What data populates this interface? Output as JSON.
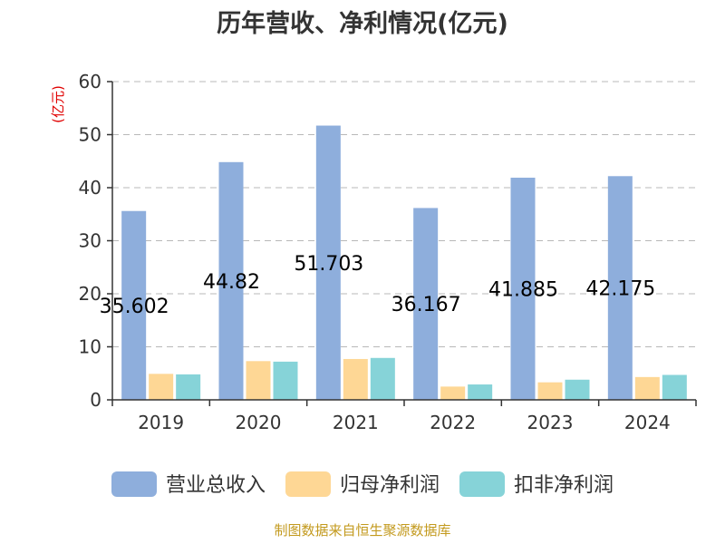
{
  "chart_data": {
    "type": "bar",
    "title": "历年营收、净利情况(亿元)",
    "ylabel": "(亿元)",
    "xlabel": "",
    "categories": [
      "2019",
      "2020",
      "2021",
      "2022",
      "2023",
      "2024"
    ],
    "ylim": [
      0,
      60
    ],
    "yticks": [
      0,
      10,
      20,
      30,
      40,
      50,
      60
    ],
    "grid": true,
    "legend_position": "bottom",
    "series": [
      {
        "name": "营业总收入",
        "color": "#8eaedc",
        "values": [
          35.602,
          44.82,
          51.703,
          36.167,
          41.885,
          42.175
        ],
        "data_labels": [
          "35.602",
          "44.82",
          "51.703",
          "36.167",
          "41.885",
          "42.175"
        ]
      },
      {
        "name": "归母净利润",
        "color": "#fed795",
        "values": [
          4.9,
          7.3,
          7.7,
          2.5,
          3.3,
          4.3
        ]
      },
      {
        "name": "扣非净利润",
        "color": "#86d3d8",
        "values": [
          4.8,
          7.2,
          7.9,
          2.9,
          3.8,
          4.7
        ]
      }
    ],
    "source": "制图数据来自恒生聚源数据库"
  }
}
